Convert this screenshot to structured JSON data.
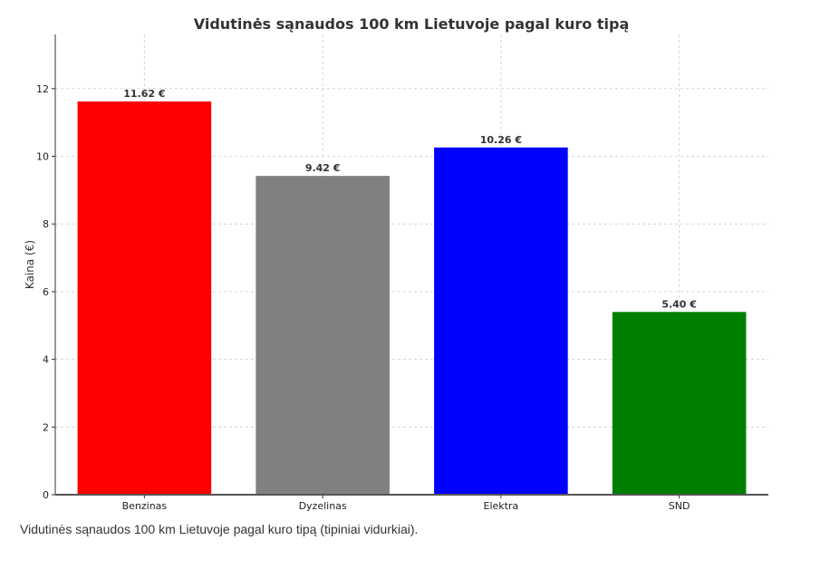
{
  "chart_data": {
    "type": "bar",
    "title": "Vidutinės sąnaudos 100 km Lietuvoje pagal kuro tipą",
    "xlabel": "",
    "ylabel": "Kaina (€)",
    "categories": [
      "Benzinas",
      "Dyzelinas",
      "Elektra",
      "SND"
    ],
    "values": [
      11.62,
      9.42,
      10.26,
      5.4
    ],
    "value_labels": [
      "11.62 €",
      "9.42 €",
      "10.26 €",
      "5.40 €"
    ],
    "colors": [
      "#ff0000",
      "#808080",
      "#0000ff",
      "#008000"
    ],
    "ylim": [
      0,
      13.6
    ],
    "yticks": [
      0,
      2,
      4,
      6,
      8,
      10,
      12
    ],
    "grid": true,
    "legend": "none"
  },
  "caption": "Vidutinės sąnaudos 100 km Lietuvoje pagal kuro tipą (tipiniai vidurkiai)."
}
